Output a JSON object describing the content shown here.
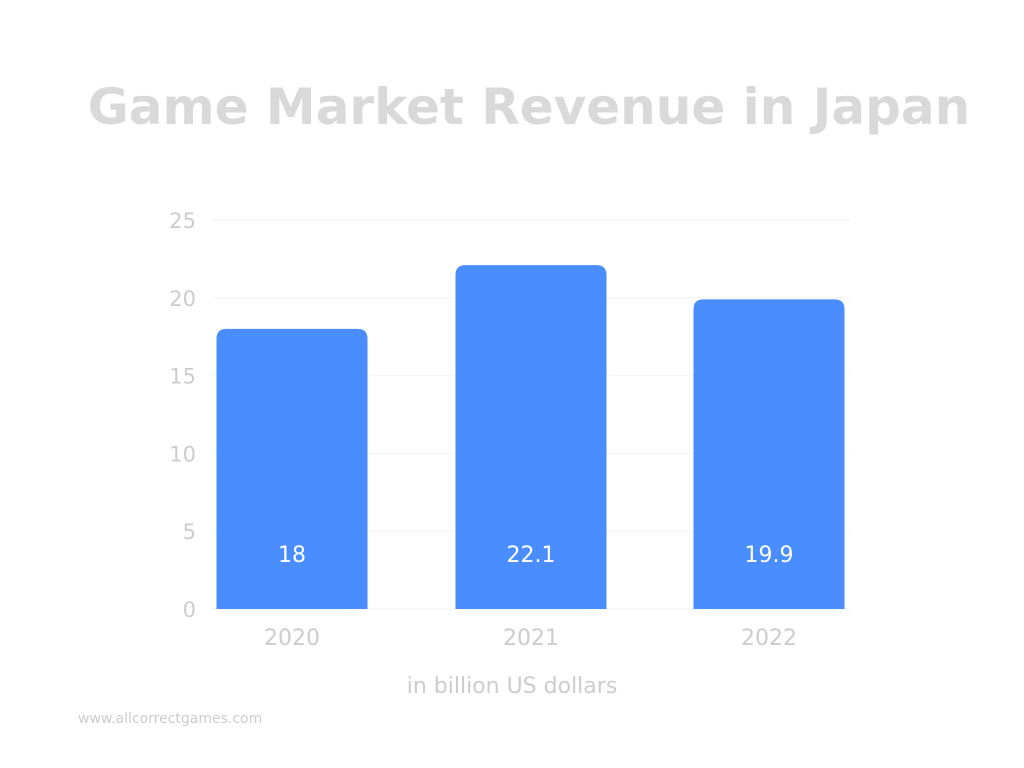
{
  "chart_data": {
    "type": "bar",
    "title": "Game Market Revenue in Japan",
    "xlabel": "in billion US dollars",
    "ylabel": "",
    "categories": [
      "2020",
      "2021",
      "2022"
    ],
    "values": [
      18,
      22.1,
      19.9
    ],
    "data_labels": [
      "18",
      "22.1",
      "19.9"
    ],
    "y_ticks": [
      0,
      5,
      10,
      15,
      20,
      25
    ],
    "ylim": [
      0,
      25
    ],
    "grid": true,
    "legend": "none",
    "bar_color": "#4a8dff",
    "label_color": "#ffffff",
    "text_color": "#cccccc",
    "grid_color": "#f2f2f2"
  },
  "footer": {
    "website": "www.allcorrectgames.com"
  }
}
